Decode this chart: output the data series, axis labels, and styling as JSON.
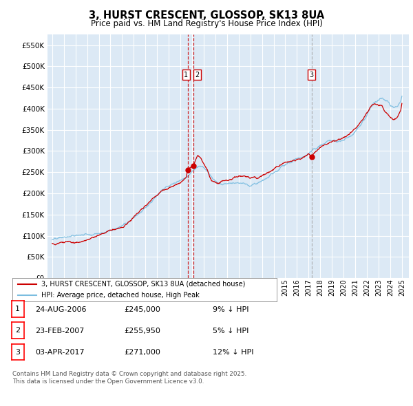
{
  "title": "3, HURST CRESCENT, GLOSSOP, SK13 8UA",
  "subtitle": "Price paid vs. HM Land Registry's House Price Index (HPI)",
  "ylim": [
    0,
    575000
  ],
  "yticks": [
    0,
    50000,
    100000,
    150000,
    200000,
    250000,
    300000,
    350000,
    400000,
    450000,
    500000,
    550000
  ],
  "ytick_labels": [
    "£0",
    "£50K",
    "£100K",
    "£150K",
    "£200K",
    "£250K",
    "£300K",
    "£350K",
    "£400K",
    "£450K",
    "£500K",
    "£550K"
  ],
  "hpi_color": "#7bbde0",
  "price_color": "#cc0000",
  "vline_color_red": "#cc0000",
  "vline_color_gray": "#aaaaaa",
  "bg_color": "#ffffff",
  "plot_bg_color": "#dce9f5",
  "grid_color": "#ffffff",
  "legend_label_price": "3, HURST CRESCENT, GLOSSOP, SK13 8UA (detached house)",
  "legend_label_hpi": "HPI: Average price, detached house, High Peak",
  "sales": [
    {
      "num": 1,
      "date": "24-AUG-2006",
      "date_val": 2006.644,
      "price": "£245,000",
      "pct": "9% ↓ HPI",
      "vline": "red"
    },
    {
      "num": 2,
      "date": "23-FEB-2007",
      "date_val": 2007.14,
      "price": "£255,950",
      "pct": "5% ↓ HPI",
      "vline": "red"
    },
    {
      "num": 3,
      "date": "03-APR-2017",
      "date_val": 2017.25,
      "price": "£271,000",
      "pct": "12% ↓ HPI",
      "vline": "gray"
    }
  ],
  "footer_line1": "Contains HM Land Registry data © Crown copyright and database right 2025.",
  "footer_line2": "This data is licensed under the Open Government Licence v3.0.",
  "xlim_start": 1994.6,
  "xlim_end": 2025.6,
  "xtick_start": 1995,
  "xtick_end": 2025
}
